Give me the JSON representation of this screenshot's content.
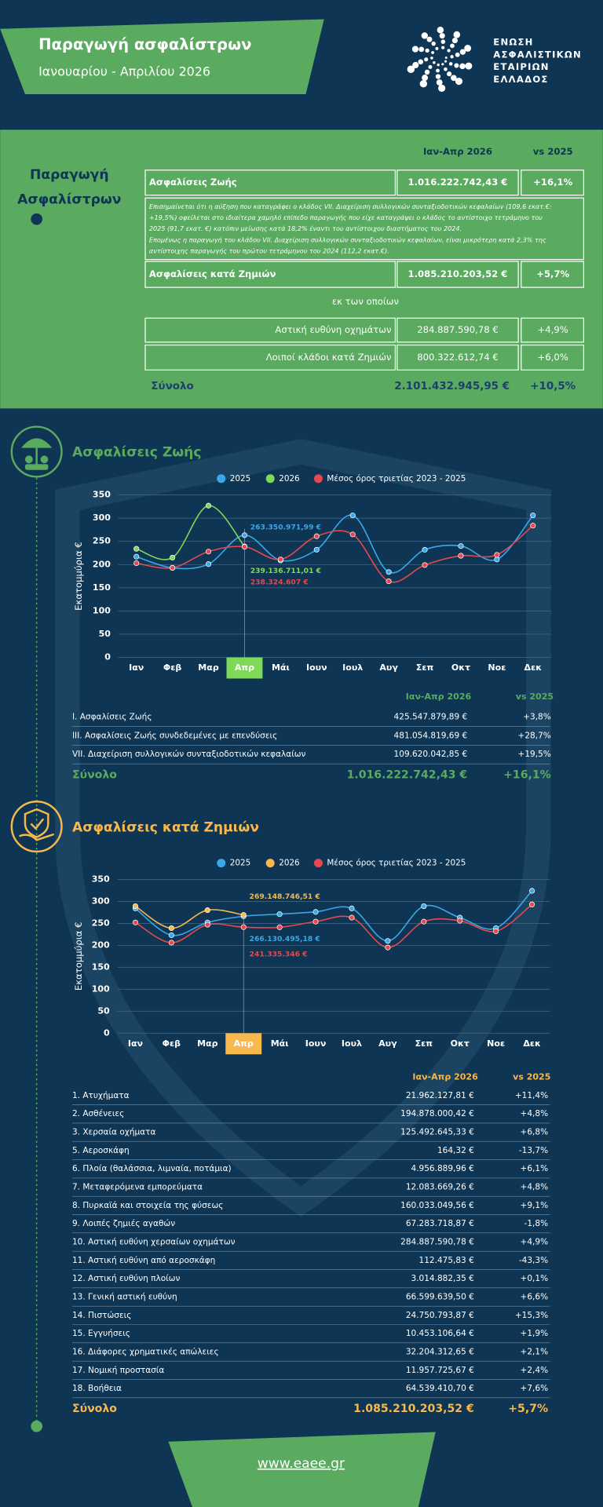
{
  "header": {
    "title": "Παραγωγή ασφαλίστρων",
    "subtitle": "Ιανουαρίου - Απριλίου 2026",
    "logo": [
      "ΕΝΩΣΗ",
      "ΑΣΦΑΛΙΣΤΙΚΩΝ",
      "ΕΤΑΙΡΙΩΝ",
      "ΕΛΛΑΔΟΣ"
    ]
  },
  "summary": {
    "label": [
      "Παραγωγή",
      "Ασφαλίστρων"
    ],
    "columns": [
      "Ιαν-Απρ 2026",
      "vs 2025"
    ],
    "life": [
      "Ασφαλίσεις Ζωής",
      "1.016.222.742,43 €",
      "+16,1%"
    ],
    "note": [
      "Επισημαίνεται ότι η αύξηση που καταγράφει ο κλάδος VII. Διαχείριση συλλογικών συνταξιοδοτικών κεφαλαίων (109,6 εκατ.€:",
      "+19,5%) οφείλεται στο ιδιαίτερα χαμηλό επίπεδο παραγωγής που είχε καταγράψει ο κλάδος το αντίστοιχο τετράμηνο του",
      "2025 (91,7 εκατ. €) κατόπιν μείωσης κατά 18,2% έναντι του αντίστοιχου διαστήματος του 2024.",
      "Επομένως η παραγωγή του κλάδου VII. Διαχείριση συλλογικών συνταξιοδοτικών κεφαλαίων, είναι μικρότερη κατά 2,3% της",
      "αντίστοιχης παραγωγής του πρώτου τετράμηνου του 2024 (112,2 εκατ.€)."
    ],
    "nonlife": [
      "Ασφαλίσεις κατά Ζημιών",
      "1.085.210.203,52 €",
      "+5,7%"
    ],
    "of_which": "εκ των οποίων",
    "sub": [
      [
        "Αστική ευθύνη οχημάτων",
        "284.887.590,78 €",
        "+4,9%"
      ],
      [
        "Λοιποί κλάδοι κατά Ζημιών",
        "800.322.612,74 €",
        "+6,0%"
      ]
    ],
    "total": [
      "Σύνολο",
      "2.101.432.945,95 €",
      "+10,5%"
    ]
  },
  "chart_data": [
    {
      "type": "line",
      "title": "Ασφαλίσεις Ζωής",
      "y_label": "Εκατομμύρια €",
      "categories": [
        "Ιαν",
        "Φεβ",
        "Μαρ",
        "Απρ",
        "Μάι",
        "Ιουν",
        "Ιουλ",
        "Αυγ",
        "Σεπ",
        "Οκτ",
        "Νοε",
        "Δεκ"
      ],
      "ylim": [
        0,
        350
      ],
      "yticks": [
        0,
        50,
        100,
        150,
        200,
        250,
        300,
        350
      ],
      "grid": true,
      "series": [
        {
          "name": "2025",
          "color": "#3aa8e8",
          "values": [
            217,
            193,
            201,
            263.35097199,
            209,
            232,
            306,
            184,
            232,
            240,
            211,
            306
          ],
          "value_labels": [
            null,
            null,
            null,
            "263.350.971,99 €",
            null,
            null,
            null,
            null,
            null,
            null,
            null,
            null
          ]
        },
        {
          "name": "2026",
          "color": "#7ed957",
          "values": [
            234,
            215,
            327,
            239.13671101,
            null,
            null,
            null,
            null,
            null,
            null,
            null,
            null
          ],
          "value_labels": [
            null,
            null,
            null,
            "239.136.711,01 €",
            null,
            null,
            null,
            null,
            null,
            null,
            null,
            null
          ]
        },
        {
          "name": "Μέσος όρος τριετίας 2023 - 2025",
          "color": "#e8474f",
          "values": [
            203,
            193,
            228,
            238.324607,
            211,
            261,
            265,
            164,
            199,
            219,
            221,
            284
          ],
          "value_labels": [
            null,
            null,
            null,
            "238.324.607 €",
            null,
            null,
            null,
            null,
            null,
            null,
            null,
            null
          ]
        }
      ]
    },
    {
      "type": "line",
      "title": "Ασφαλίσεις κατά Ζημιών",
      "y_label": "Εκατομμύρια €",
      "categories": [
        "Ιαν",
        "Φεβ",
        "Μαρ",
        "Απρ",
        "Μάι",
        "Ιουν",
        "Ιουλ",
        "Αυγ",
        "Σεπ",
        "Οκτ",
        "Νοε",
        "Δεκ"
      ],
      "ylim": [
        0,
        350
      ],
      "yticks": [
        0,
        50,
        100,
        150,
        200,
        250,
        300,
        350
      ],
      "grid": true,
      "series": [
        {
          "name": "2025",
          "color": "#3aa8e8",
          "values": [
            284,
            223,
            252,
            266.13049518,
            271,
            276,
            284,
            210,
            289,
            263,
            239,
            324
          ],
          "value_labels": [
            null,
            null,
            null,
            "266.130.495,18 €",
            null,
            null,
            null,
            null,
            null,
            null,
            null,
            null
          ]
        },
        {
          "name": "2026",
          "color": "#f7b84e",
          "values": [
            289,
            239,
            280,
            269.14874651,
            null,
            null,
            null,
            null,
            null,
            null,
            null,
            null
          ],
          "value_labels": [
            null,
            null,
            null,
            "269.148.746,51 €",
            null,
            null,
            null,
            null,
            null,
            null,
            null,
            null
          ]
        },
        {
          "name": "Μέσος όρος τριετίας 2023 - 2025",
          "color": "#e8474f",
          "values": [
            252,
            206,
            247,
            241.335346,
            241,
            254,
            263,
            195,
            254,
            256,
            232,
            293
          ],
          "value_labels": [
            null,
            null,
            null,
            "241.335.346 €",
            null,
            null,
            null,
            null,
            null,
            null,
            null,
            null
          ]
        }
      ]
    }
  ],
  "life_table": {
    "columns": [
      "Ιαν-Απρ 2026",
      "vs 2025"
    ],
    "rows": [
      [
        "I. Ασφαλίσεις  Ζωής",
        "425.547.879,89 €",
        "+3,8%"
      ],
      [
        "III. Ασφαλίσεις  Ζωής  συνδεδεμένες με επενδύσεις",
        "481.054.819,69 €",
        "+28,7%"
      ],
      [
        "VII. Διαχείριση συλλογικών συνταξιοδοτικών κεφαλαίων",
        "109.620.042,85 €",
        "+19,5%"
      ]
    ],
    "total": [
      "Σύνολο",
      "1.016.222.742,43 €",
      "+16,1%"
    ]
  },
  "nonlife_table": {
    "columns": [
      "Ιαν-Απρ 2026",
      "vs 2025"
    ],
    "rows": [
      [
        "1. Ατυχήματα",
        "21.962.127,81 €",
        "+11,4%"
      ],
      [
        "2. Ασθένειες",
        "194.878.000,42 €",
        "+4,8%"
      ],
      [
        "3. Χερσαία οχήματα",
        "125.492.645,33 €",
        "+6,8%"
      ],
      [
        "5. Αεροσκάφη",
        "164,32 €",
        "-13,7%"
      ],
      [
        "6. Πλοία (θαλάσσια, λιμναία, ποτάμια)",
        "4.956.889,96 €",
        "+6,1%"
      ],
      [
        "7. Μεταφερόμενα εμπορεύματα",
        "12.083.669,26 €",
        "+4,8%"
      ],
      [
        "8. Πυρκαϊά και στοιχεία της φύσεως",
        "160.033.049,56 €",
        "+9,1%"
      ],
      [
        "9. Λοιπές ζημιές αγαθών",
        "67.283.718,87 €",
        "-1,8%"
      ],
      [
        "10. Αστική ευθύνη χερσαίων οχημάτων",
        "284.887.590,78 €",
        "+4,9%"
      ],
      [
        "11. Αστική ευθύνη από αεροσκάφη",
        "112.475,83 €",
        "-43,3%"
      ],
      [
        "12. Αστική ευθύνη πλοίων",
        "3.014.882,35 €",
        "+0,1%"
      ],
      [
        "13. Γενική αστική ευθύνη",
        "66.599.639,50 €",
        "+6,6%"
      ],
      [
        "14. Πιστώσεις",
        "24.750.793,87 €",
        "+15,3%"
      ],
      [
        "15. Εγγυήσεις",
        "10.453.106,64 €",
        "+1,9%"
      ],
      [
        "16. Διάφορες χρηματικές απώλειες",
        "32.204.312,65 €",
        "+2,1%"
      ],
      [
        "17. Νομική προστασία",
        "11.957.725,67 €",
        "+2,4%"
      ],
      [
        "18. Βοήθεια",
        "64.539.410,70 €",
        "+7,6%"
      ]
    ],
    "total": [
      "Σύνολο",
      "1.085.210.203,52 €",
      "+5,7%"
    ]
  },
  "footer": {
    "url": "www.eaee.gr"
  }
}
